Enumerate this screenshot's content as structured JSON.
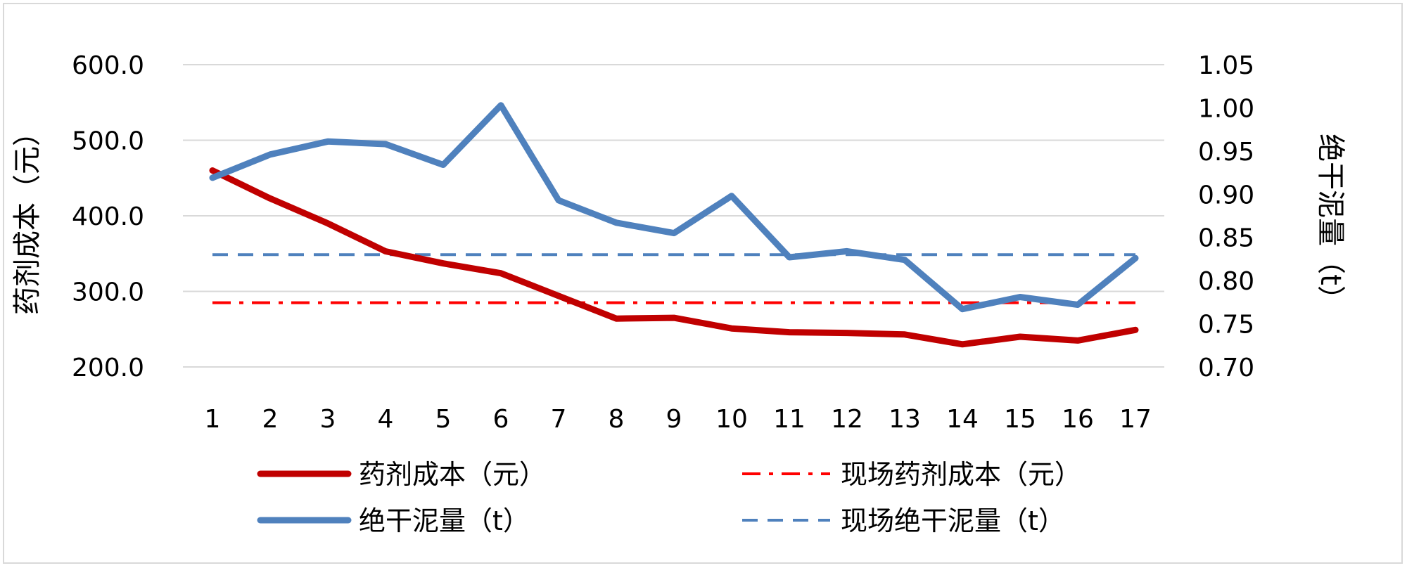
{
  "chart_data": {
    "type": "line",
    "categories": [
      "1",
      "2",
      "3",
      "4",
      "5",
      "6",
      "7",
      "8",
      "9",
      "10",
      "11",
      "12",
      "13",
      "14",
      "15",
      "16",
      "17"
    ],
    "y_left": {
      "label": "药剂成本（元）",
      "ylim": [
        200,
        600
      ],
      "ticks": [
        "200.0",
        "300.0",
        "400.0",
        "500.0",
        "600.0"
      ]
    },
    "y_right": {
      "label": "绝干泥量（t）",
      "ylim": [
        0.7,
        1.05
      ],
      "ticks": [
        "0.70",
        "0.75",
        "0.80",
        "0.85",
        "0.90",
        "0.95",
        "1.00",
        "1.05"
      ]
    },
    "grid": true,
    "legend_position": "bottom",
    "series": [
      {
        "name": "药剂成本（元）",
        "axis": "left",
        "color": "#c00000",
        "style": "solid",
        "values": [
          460,
          423,
          390,
          353,
          337,
          324,
          294,
          264,
          265,
          251,
          246,
          245,
          243,
          230,
          240,
          235,
          249
        ]
      },
      {
        "name": "现场药剂成本（元）",
        "axis": "left",
        "color": "#ff0000",
        "style": "dashdot",
        "values": [
          285,
          285,
          285,
          285,
          285,
          285,
          285,
          285,
          285,
          285,
          285,
          285,
          285,
          285,
          285,
          285,
          285
        ]
      },
      {
        "name": "绝干泥量（t）",
        "axis": "right",
        "color": "#4f81bd",
        "style": "solid",
        "values": [
          0.919,
          0.946,
          0.961,
          0.958,
          0.934,
          1.003,
          0.893,
          0.867,
          0.855,
          0.898,
          0.827,
          0.834,
          0.824,
          0.767,
          0.781,
          0.772,
          0.826
        ]
      },
      {
        "name": "现场绝干泥量（t）",
        "axis": "right",
        "color": "#4f81bd",
        "style": "dashed",
        "values": [
          0.83,
          0.83,
          0.83,
          0.83,
          0.83,
          0.83,
          0.83,
          0.83,
          0.83,
          0.83,
          0.83,
          0.83,
          0.83,
          0.83,
          0.83,
          0.83,
          0.83
        ]
      }
    ]
  }
}
